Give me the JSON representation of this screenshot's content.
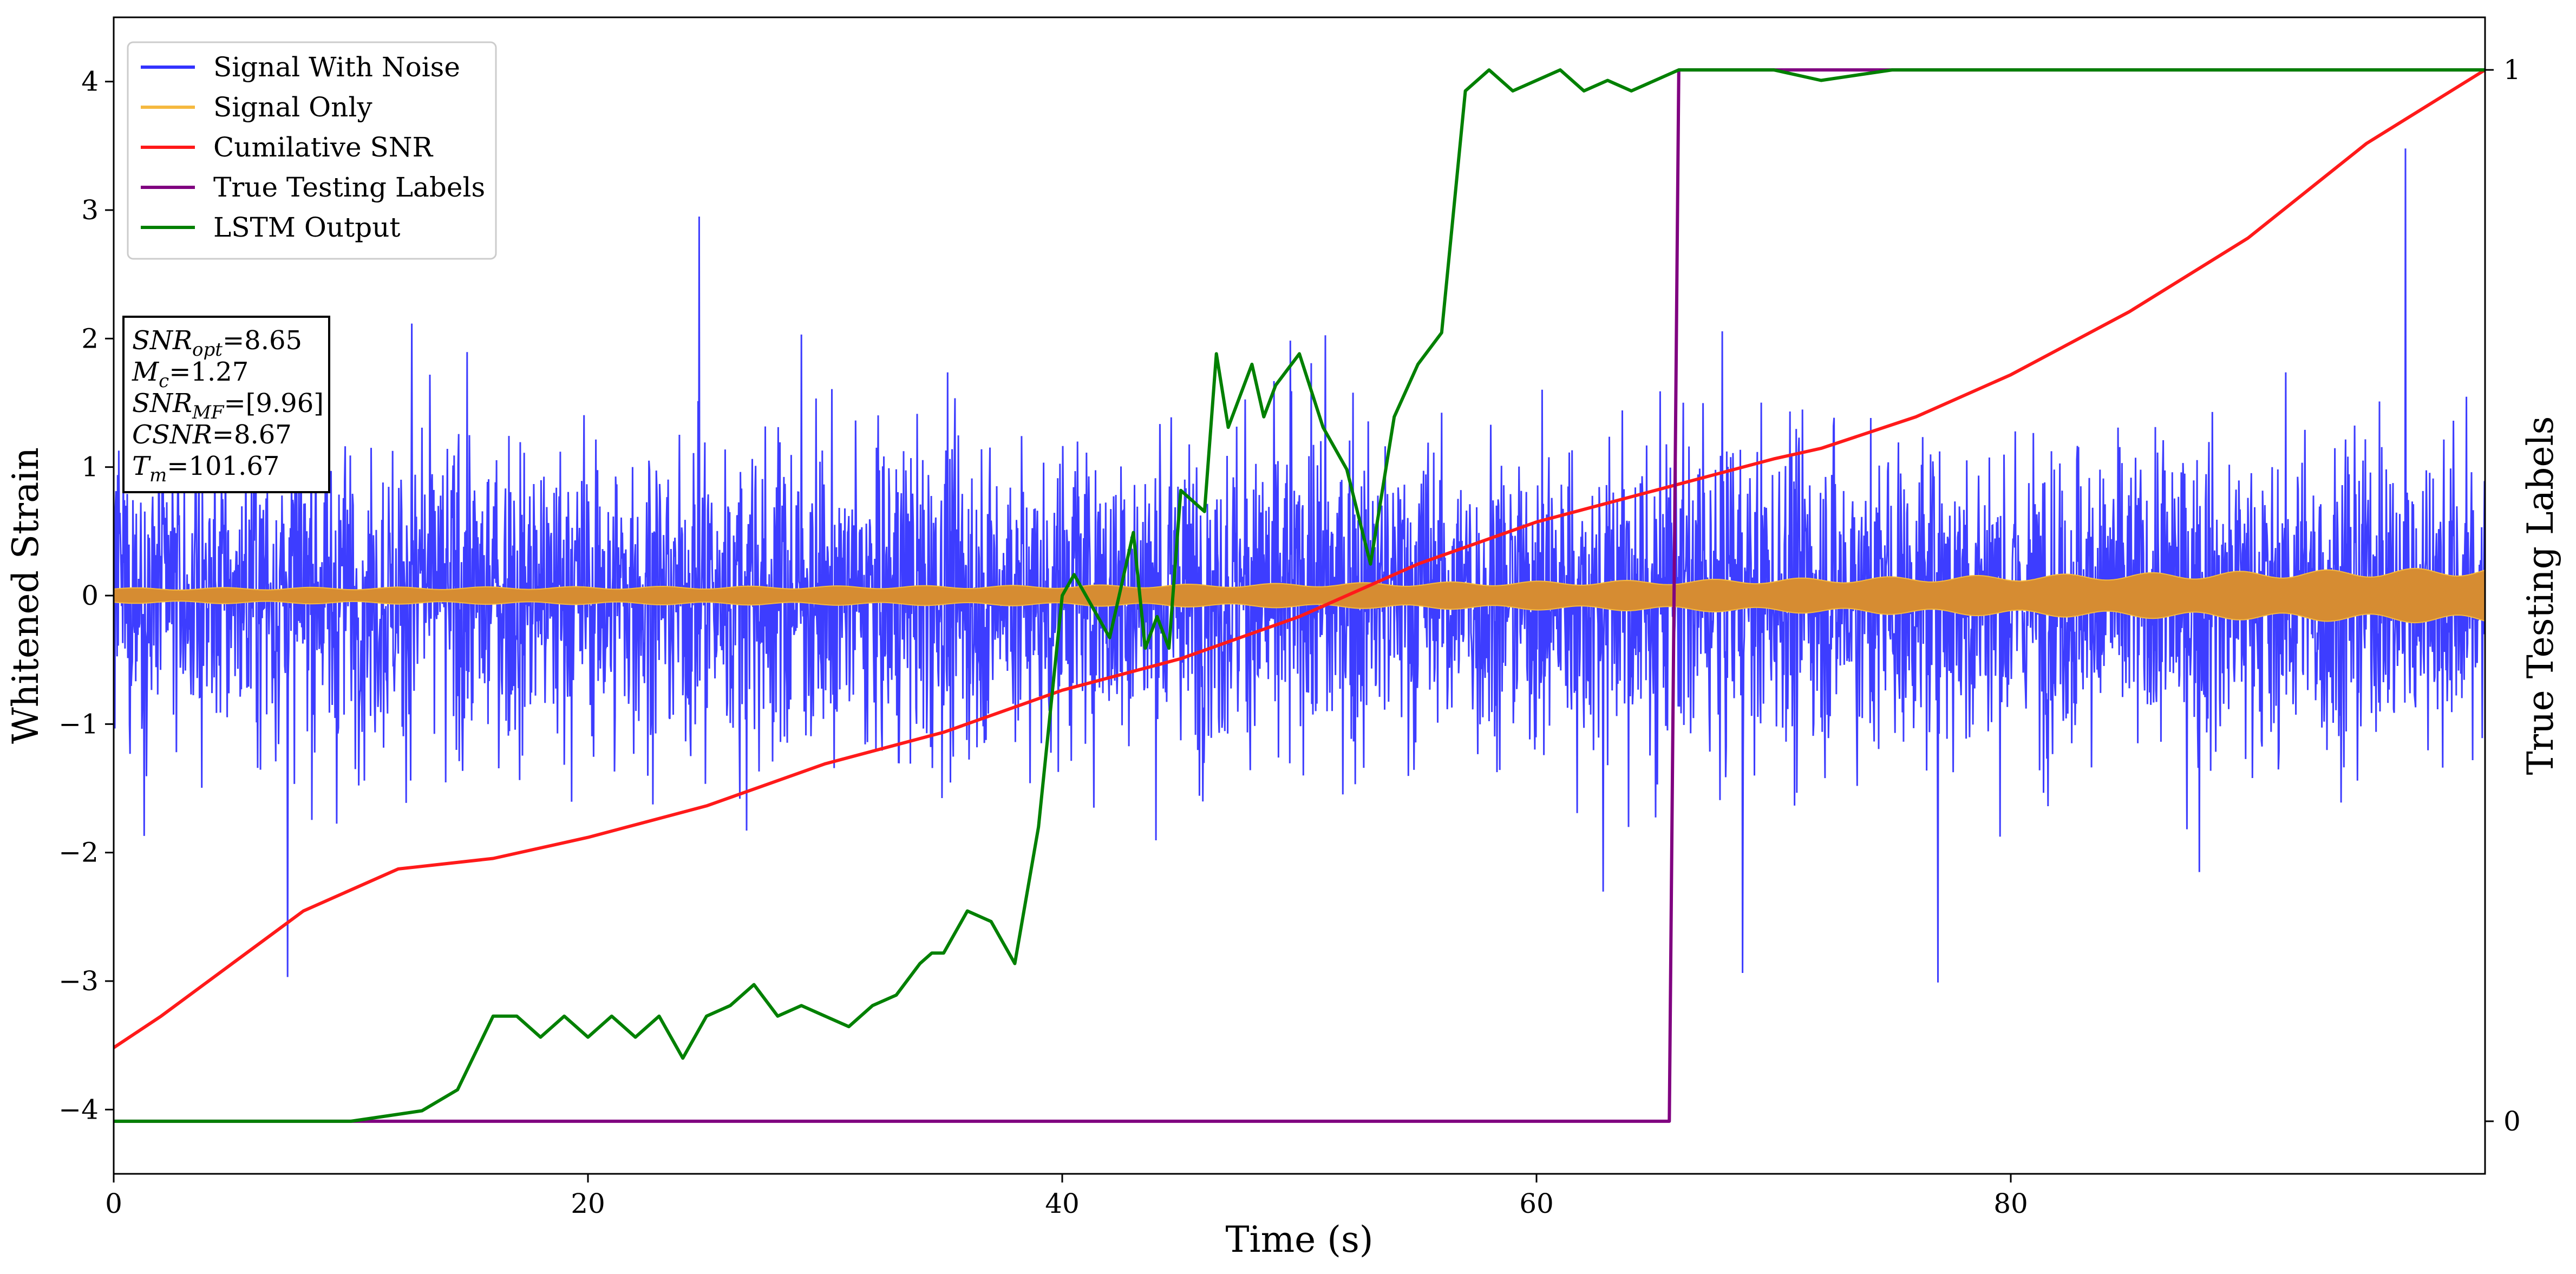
{
  "chart_data": {
    "type": "line",
    "xlabel": "Time (s)",
    "ylabel": "Whitened Strain",
    "y2label": "True Testing Labels",
    "xlim": [
      0,
      100
    ],
    "ylim": [
      -4.5,
      4.5
    ],
    "y2lim": [
      -0.05,
      1.05
    ],
    "xticks": [
      "0",
      "20",
      "40",
      "60",
      "80"
    ],
    "yticks": [
      "−4",
      "−3",
      "−2",
      "−1",
      "0",
      "1",
      "2",
      "3",
      "4"
    ],
    "y2ticks": [
      "0",
      "1"
    ],
    "legend_position": "top-left",
    "series": [
      {
        "name": "Signal With Noise",
        "color": "#3333ff",
        "axis": "left",
        "kind": "noise",
        "note_range": [
          -3.9,
          3.9
        ]
      },
      {
        "name": "Signal Only",
        "color": "#f5b940",
        "axis": "left",
        "kind": "chirp",
        "amplitude_envelope": [
          [
            0,
            0.06
          ],
          [
            40,
            0.08
          ],
          [
            65,
            0.12
          ],
          [
            80,
            0.16
          ],
          [
            100,
            0.22
          ]
        ]
      },
      {
        "name": "Cumilative SNR",
        "color": "#ff1a1a",
        "axis": "right",
        "x": [
          0,
          2,
          5,
          8,
          12,
          16,
          20,
          25,
          30,
          35,
          40,
          45,
          50,
          55,
          60,
          65,
          70,
          72,
          76,
          80,
          85,
          90,
          95,
          100
        ],
        "y": [
          0.07,
          0.1,
          0.15,
          0.2,
          0.24,
          0.25,
          0.27,
          0.3,
          0.34,
          0.37,
          0.41,
          0.44,
          0.48,
          0.53,
          0.57,
          0.6,
          0.63,
          0.64,
          0.67,
          0.71,
          0.77,
          0.84,
          0.93,
          1.0
        ]
      },
      {
        "name": "True Testing Labels",
        "color": "#800080",
        "axis": "right",
        "x": [
          0,
          65.6,
          66.0,
          100
        ],
        "y": [
          0,
          0,
          1,
          1
        ]
      },
      {
        "name": "LSTM Output",
        "color": "#008000",
        "axis": "right",
        "x": [
          0,
          10,
          13,
          14.5,
          16,
          17,
          18,
          19,
          20,
          21,
          22,
          23,
          24,
          25,
          26,
          27,
          28,
          29,
          30,
          31,
          32,
          33,
          34,
          34.5,
          35,
          36,
          37,
          38,
          39,
          40,
          40.5,
          41,
          42,
          43,
          43.5,
          44,
          44.5,
          45,
          46,
          46.5,
          47,
          48,
          48.5,
          49,
          50,
          51,
          52,
          53,
          54,
          55,
          56,
          57,
          58,
          59,
          60,
          61,
          62,
          63,
          64,
          65,
          66,
          67,
          68,
          70,
          72,
          75,
          78,
          82,
          100
        ],
        "y": [
          0,
          0,
          0.01,
          0.03,
          0.1,
          0.1,
          0.08,
          0.1,
          0.08,
          0.1,
          0.08,
          0.1,
          0.06,
          0.1,
          0.11,
          0.13,
          0.1,
          0.11,
          0.1,
          0.09,
          0.11,
          0.12,
          0.15,
          0.16,
          0.16,
          0.2,
          0.19,
          0.15,
          0.28,
          0.5,
          0.52,
          0.5,
          0.46,
          0.56,
          0.45,
          0.48,
          0.45,
          0.6,
          0.58,
          0.73,
          0.66,
          0.72,
          0.67,
          0.7,
          0.73,
          0.66,
          0.62,
          0.53,
          0.67,
          0.72,
          0.75,
          0.98,
          1.0,
          0.98,
          0.99,
          1.0,
          0.98,
          0.99,
          0.98,
          0.99,
          1.0,
          1.0,
          1.0,
          1.0,
          0.99,
          1.0,
          1.0,
          1.0,
          1.0
        ]
      }
    ],
    "annotation": {
      "lines": [
        {
          "label": "SNR",
          "sub": "opt",
          "value": "=8.65"
        },
        {
          "label": "M",
          "sub": "c",
          "value": "=1.27"
        },
        {
          "label": "SNR",
          "sub": "MF",
          "value": "=[9.96]"
        },
        {
          "label": "CSNR",
          "sub": "",
          "value": "=8.67"
        },
        {
          "label": "T",
          "sub": "m",
          "value": "=101.67"
        }
      ]
    }
  }
}
